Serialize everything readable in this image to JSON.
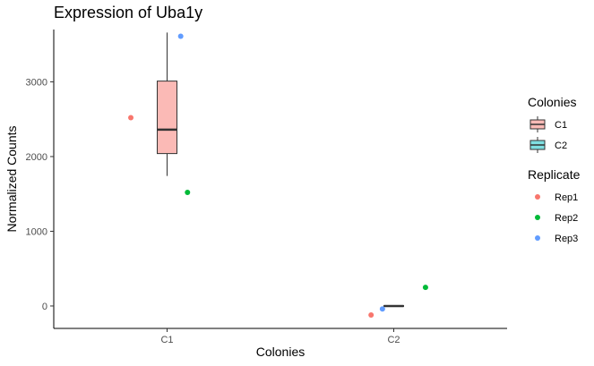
{
  "chart_data": {
    "type": "box",
    "title": "Expression of Uba1y",
    "xlabel": "Colonies",
    "ylabel": "Normalized Counts",
    "categories": [
      "C1",
      "C2"
    ],
    "ylim": [
      -300,
      3700
    ],
    "yticks": [
      0,
      1000,
      2000,
      3000
    ],
    "grid": false,
    "legend_position": "right",
    "boxes": [
      {
        "category": "C1",
        "min": 1740,
        "q1": 2040,
        "median": 2360,
        "q3": 3010,
        "max": 3660,
        "fill": "#F8766D"
      },
      {
        "category": "C2",
        "min": -5,
        "q1": -5,
        "median": 0,
        "q3": 5,
        "max": 5,
        "fill": "#00BFC4"
      }
    ],
    "points": [
      {
        "category": "C1",
        "replicate": "Rep1",
        "y": 2520,
        "jitter": -0.16
      },
      {
        "category": "C1",
        "replicate": "Rep2",
        "y": 1520,
        "jitter": 0.09
      },
      {
        "category": "C1",
        "replicate": "Rep3",
        "y": 3610,
        "jitter": 0.06
      },
      {
        "category": "C2",
        "replicate": "Rep1",
        "y": -120,
        "jitter": -0.1
      },
      {
        "category": "C2",
        "replicate": "Rep2",
        "y": 250,
        "jitter": 0.14
      },
      {
        "category": "C2",
        "replicate": "Rep3",
        "y": -40,
        "jitter": -0.05
      }
    ],
    "legends": [
      {
        "title": "Colonies",
        "kind": "box",
        "entries": [
          {
            "label": "C1",
            "color": "#F8766D"
          },
          {
            "label": "C2",
            "color": "#00BFC4"
          }
        ]
      },
      {
        "title": "Replicate",
        "kind": "point",
        "entries": [
          {
            "label": "Rep1",
            "color": "#F8766D"
          },
          {
            "label": "Rep2",
            "color": "#00BA38"
          },
          {
            "label": "Rep3",
            "color": "#619CFF"
          }
        ]
      }
    ],
    "colors": {
      "Rep1": "#F8766D",
      "Rep2": "#00BA38",
      "Rep3": "#619CFF",
      "axis": "#000000",
      "tick_text": "#4d4d4d",
      "box_line": "#333333"
    }
  }
}
